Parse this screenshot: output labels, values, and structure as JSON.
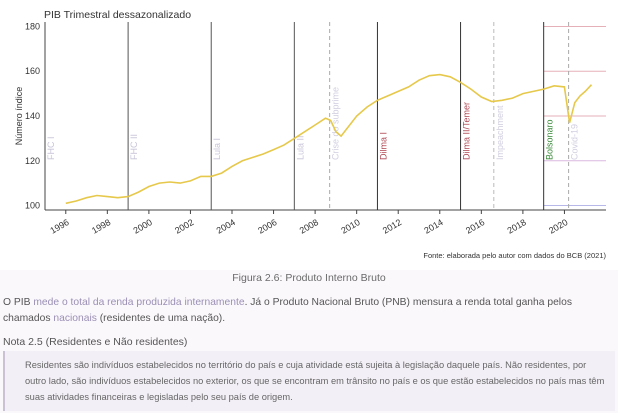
{
  "chart_data": {
    "type": "line",
    "title": "PIB Trimestral dessazonalizado",
    "ylabel": "Número índice",
    "xlabel": "",
    "ylim": [
      98,
      182
    ],
    "xlim": [
      1995,
      2022
    ],
    "y_ticks": [
      100,
      120,
      140,
      160,
      180
    ],
    "x_ticks": [
      1996,
      1998,
      2000,
      2002,
      2004,
      2006,
      2008,
      2010,
      2012,
      2014,
      2016,
      2018,
      2020
    ],
    "grid": false,
    "series": [
      {
        "color": "#e6c84a",
        "points": [
          [
            1996.0,
            101
          ],
          [
            1996.5,
            102
          ],
          [
            1997.0,
            103.5
          ],
          [
            1997.5,
            104.5
          ],
          [
            1998.0,
            104
          ],
          [
            1998.5,
            103.5
          ],
          [
            1999.0,
            104
          ],
          [
            1999.5,
            106
          ],
          [
            2000.0,
            108.5
          ],
          [
            2000.5,
            110
          ],
          [
            2001.0,
            110.5
          ],
          [
            2001.5,
            110
          ],
          [
            2002.0,
            111
          ],
          [
            2002.5,
            113
          ],
          [
            2003.0,
            113
          ],
          [
            2003.5,
            114.5
          ],
          [
            2004.0,
            117.5
          ],
          [
            2004.5,
            120
          ],
          [
            2005.0,
            121.5
          ],
          [
            2005.5,
            123
          ],
          [
            2006.0,
            125
          ],
          [
            2006.5,
            127
          ],
          [
            2007.0,
            130
          ],
          [
            2007.5,
            133
          ],
          [
            2008.0,
            136
          ],
          [
            2008.5,
            139
          ],
          [
            2008.75,
            138
          ],
          [
            2009.0,
            133
          ],
          [
            2009.25,
            131
          ],
          [
            2009.5,
            134
          ],
          [
            2010.0,
            140
          ],
          [
            2010.5,
            144
          ],
          [
            2011.0,
            147
          ],
          [
            2011.5,
            149
          ],
          [
            2012.0,
            151
          ],
          [
            2012.5,
            153
          ],
          [
            2013.0,
            156
          ],
          [
            2013.5,
            158
          ],
          [
            2014.0,
            158.5
          ],
          [
            2014.5,
            157.5
          ],
          [
            2015.0,
            155
          ],
          [
            2015.5,
            152
          ],
          [
            2016.0,
            148.5
          ],
          [
            2016.5,
            146.5
          ],
          [
            2017.0,
            147
          ],
          [
            2017.5,
            148
          ],
          [
            2018.0,
            150
          ],
          [
            2018.5,
            151
          ],
          [
            2019.0,
            152
          ],
          [
            2019.5,
            153.5
          ],
          [
            2020.0,
            153
          ],
          [
            2020.25,
            137
          ],
          [
            2020.5,
            146
          ],
          [
            2020.75,
            149
          ],
          [
            2021.0,
            151
          ],
          [
            2021.3,
            154
          ]
        ]
      }
    ],
    "vlines": [
      {
        "x": 1995.0,
        "color": "#444444",
        "dash": false,
        "label": "FHC I",
        "label_color": "#c9c4d8"
      },
      {
        "x": 1999.0,
        "color": "#555555",
        "dash": false,
        "label": "FHC II",
        "label_color": "#c9c4d8"
      },
      {
        "x": 2003.0,
        "color": "#555555",
        "dash": false,
        "label": "Lula I",
        "label_color": "#c9c4d8"
      },
      {
        "x": 2007.0,
        "color": "#555555",
        "dash": false,
        "label": "Lula II",
        "label_color": "#c9c4d8"
      },
      {
        "x": 2008.7,
        "color": "#aaaaaa",
        "dash": true,
        "label": "Crise do subprime",
        "label_color": "#d2cfe0"
      },
      {
        "x": 2011.0,
        "color": "#333333",
        "dash": false,
        "label": "Dilma I",
        "label_color": "#b04a56"
      },
      {
        "x": 2015.0,
        "color": "#333333",
        "dash": false,
        "label": "Dilma II/Temer",
        "label_color": "#b04a56"
      },
      {
        "x": 2016.6,
        "color": "#bbbbbb",
        "dash": true,
        "label": "Impeachment",
        "label_color": "#d2cfe0"
      },
      {
        "x": 2019.0,
        "color": "#333333",
        "dash": false,
        "label": "Bolsonaro",
        "label_color": "#3a8a3a"
      },
      {
        "x": 2020.2,
        "color": "#aaaaaa",
        "dash": true,
        "label": "Covid-19",
        "label_color": "#d2cfe0"
      }
    ],
    "source": "Fonte: elaborada pelo autor com dados do BCB (2021)"
  },
  "caption": "Figura 2.6: Produto Interno Bruto",
  "paragraph": {
    "p1": "O PIB ",
    "l1": "mede o total da renda produzida internamente",
    "p2": ". Já o Produto Nacional Bruto (PNB) mensura a renda total ganha pelos chamados ",
    "l2": "nacionais",
    "p3": " (residentes de uma nação)."
  },
  "note_title": "Nota 2.5 (Residentes e Não residentes)",
  "note_text": "Residentes são indivíduos estabelecidos no território do país e cuja atividade está sujeita à legislação daquele país. Não residentes, por outro lado, são indivíduos estabelecidos no exterior, os que se encontram em trânsito no país e os que estão estabelecidos no país mas têm suas atividades financeiras e legisladas pelo seu país de origem."
}
